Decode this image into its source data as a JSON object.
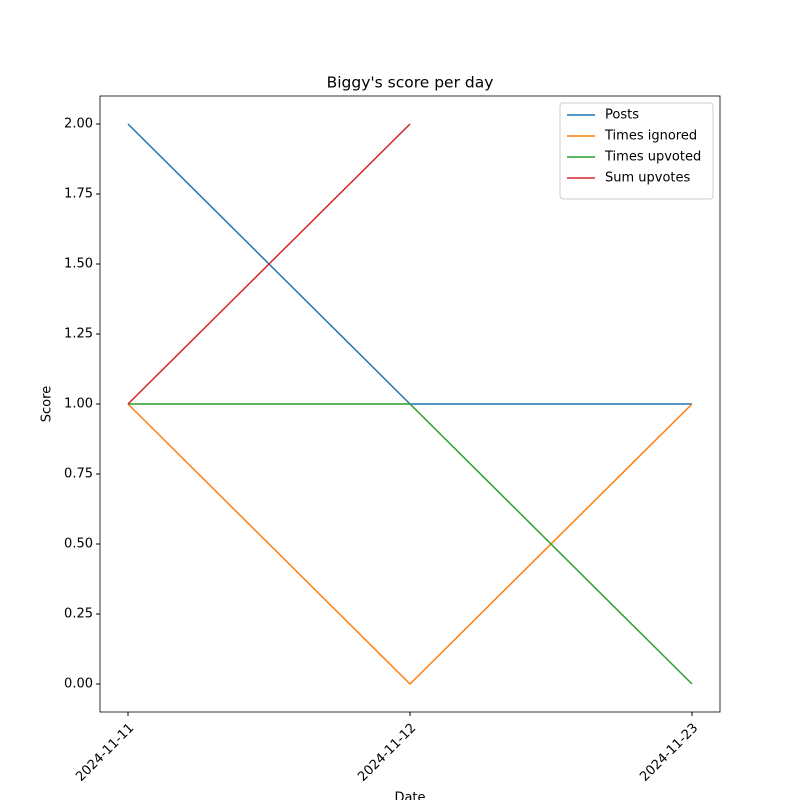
{
  "chart_data": {
    "type": "line",
    "title": "Biggy's score per day",
    "xlabel": "Date",
    "ylabel": "Score",
    "categories": [
      "2024-11-11",
      "2024-11-12",
      "2024-11-23"
    ],
    "series": [
      {
        "name": "Posts",
        "color": "#1f77b4",
        "values": [
          2,
          1,
          1
        ]
      },
      {
        "name": "Times ignored",
        "color": "#ff7f0e",
        "values": [
          1,
          0,
          1
        ]
      },
      {
        "name": "Times upvoted",
        "color": "#2ca02c",
        "values": [
          1,
          1,
          0
        ]
      },
      {
        "name": "Sum upvotes",
        "color": "#d62728",
        "values": [
          1,
          2,
          null
        ]
      }
    ],
    "ylim": [
      -0.1,
      2.1
    ],
    "yticks": [
      {
        "value": 0,
        "label": "0.00"
      },
      {
        "value": 0.25,
        "label": "0.25"
      },
      {
        "value": 0.5,
        "label": "0.50"
      },
      {
        "value": 0.75,
        "label": "0.75"
      },
      {
        "value": 1,
        "label": "1.00"
      },
      {
        "value": 1.25,
        "label": "1.25"
      },
      {
        "value": 1.5,
        "label": "1.50"
      },
      {
        "value": 1.75,
        "label": "1.75"
      },
      {
        "value": 2,
        "label": "2.00"
      }
    ],
    "legend": "upper right",
    "grid": false
  }
}
